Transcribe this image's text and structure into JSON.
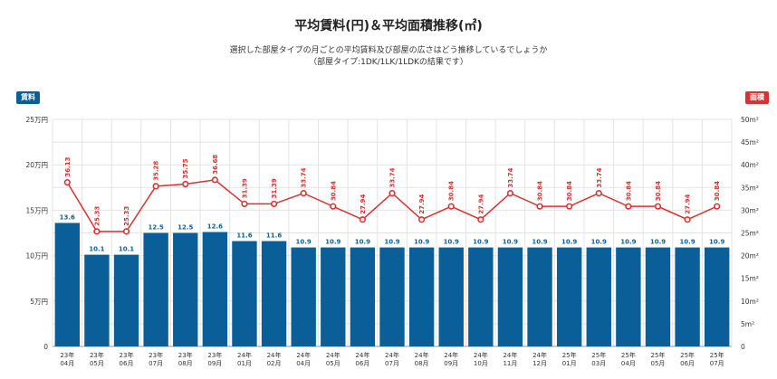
{
  "chart_data": {
    "type": "bar+line",
    "title": "平均賃料(円)＆平均面積推移(㎡)",
    "subtitle_lines": [
      "選択した部屋タイプの月ごとの平均賃料及び部屋の広さはどう推移しているでしょうか",
      "（部屋タイプ:1DK/1LK/1LDKの結果です）"
    ],
    "left_badge": "賃料",
    "right_badge": "面積",
    "categories": [
      [
        "23年",
        "04月"
      ],
      [
        "23年",
        "05月"
      ],
      [
        "23年",
        "06月"
      ],
      [
        "23年",
        "07月"
      ],
      [
        "23年",
        "08月"
      ],
      [
        "23年",
        "09月"
      ],
      [
        "24年",
        "01月"
      ],
      [
        "24年",
        "02月"
      ],
      [
        "24年",
        "04月"
      ],
      [
        "24年",
        "05月"
      ],
      [
        "24年",
        "06月"
      ],
      [
        "24年",
        "07月"
      ],
      [
        "24年",
        "08月"
      ],
      [
        "24年",
        "09月"
      ],
      [
        "24年",
        "10月"
      ],
      [
        "24年",
        "11月"
      ],
      [
        "24年",
        "12月"
      ],
      [
        "25年",
        "01月"
      ],
      [
        "25年",
        "03月"
      ],
      [
        "25年",
        "04月"
      ],
      [
        "25年",
        "05月"
      ],
      [
        "25年",
        "06月"
      ],
      [
        "25年",
        "07月"
      ]
    ],
    "rent_values": [
      13.6,
      10.1,
      10.1,
      12.5,
      12.5,
      12.6,
      11.6,
      11.6,
      10.9,
      10.9,
      10.9,
      10.9,
      10.9,
      10.9,
      10.9,
      10.9,
      10.9,
      10.9,
      10.9,
      10.9,
      10.9,
      10.9,
      10.9
    ],
    "area_values": [
      36.13,
      25.33,
      25.33,
      35.28,
      35.75,
      36.68,
      31.39,
      31.39,
      33.74,
      30.84,
      27.94,
      33.74,
      27.94,
      30.84,
      27.94,
      33.74,
      30.84,
      30.84,
      33.74,
      30.84,
      30.84,
      27.94,
      30.84
    ],
    "left_axis": {
      "min": 0,
      "max": 25,
      "ticks": [
        0,
        5,
        10,
        15,
        20,
        25
      ],
      "tick_labels": [
        "0",
        "5万円",
        "10万円",
        "15万円",
        "20万円",
        "25万円"
      ]
    },
    "right_axis": {
      "min": 0,
      "max": 50,
      "ticks": [
        0,
        5,
        10,
        15,
        20,
        25,
        30,
        35,
        40,
        45,
        50
      ],
      "tick_labels": [
        "0",
        "5m²",
        "10m²",
        "15m²",
        "20m²",
        "25m²",
        "30m²",
        "35m²",
        "40m²",
        "45m²",
        "50m²"
      ]
    },
    "grid": true,
    "colors": {
      "bar": "#0b5f99",
      "line": "#d83232",
      "grid": "#e3e3e3"
    }
  }
}
